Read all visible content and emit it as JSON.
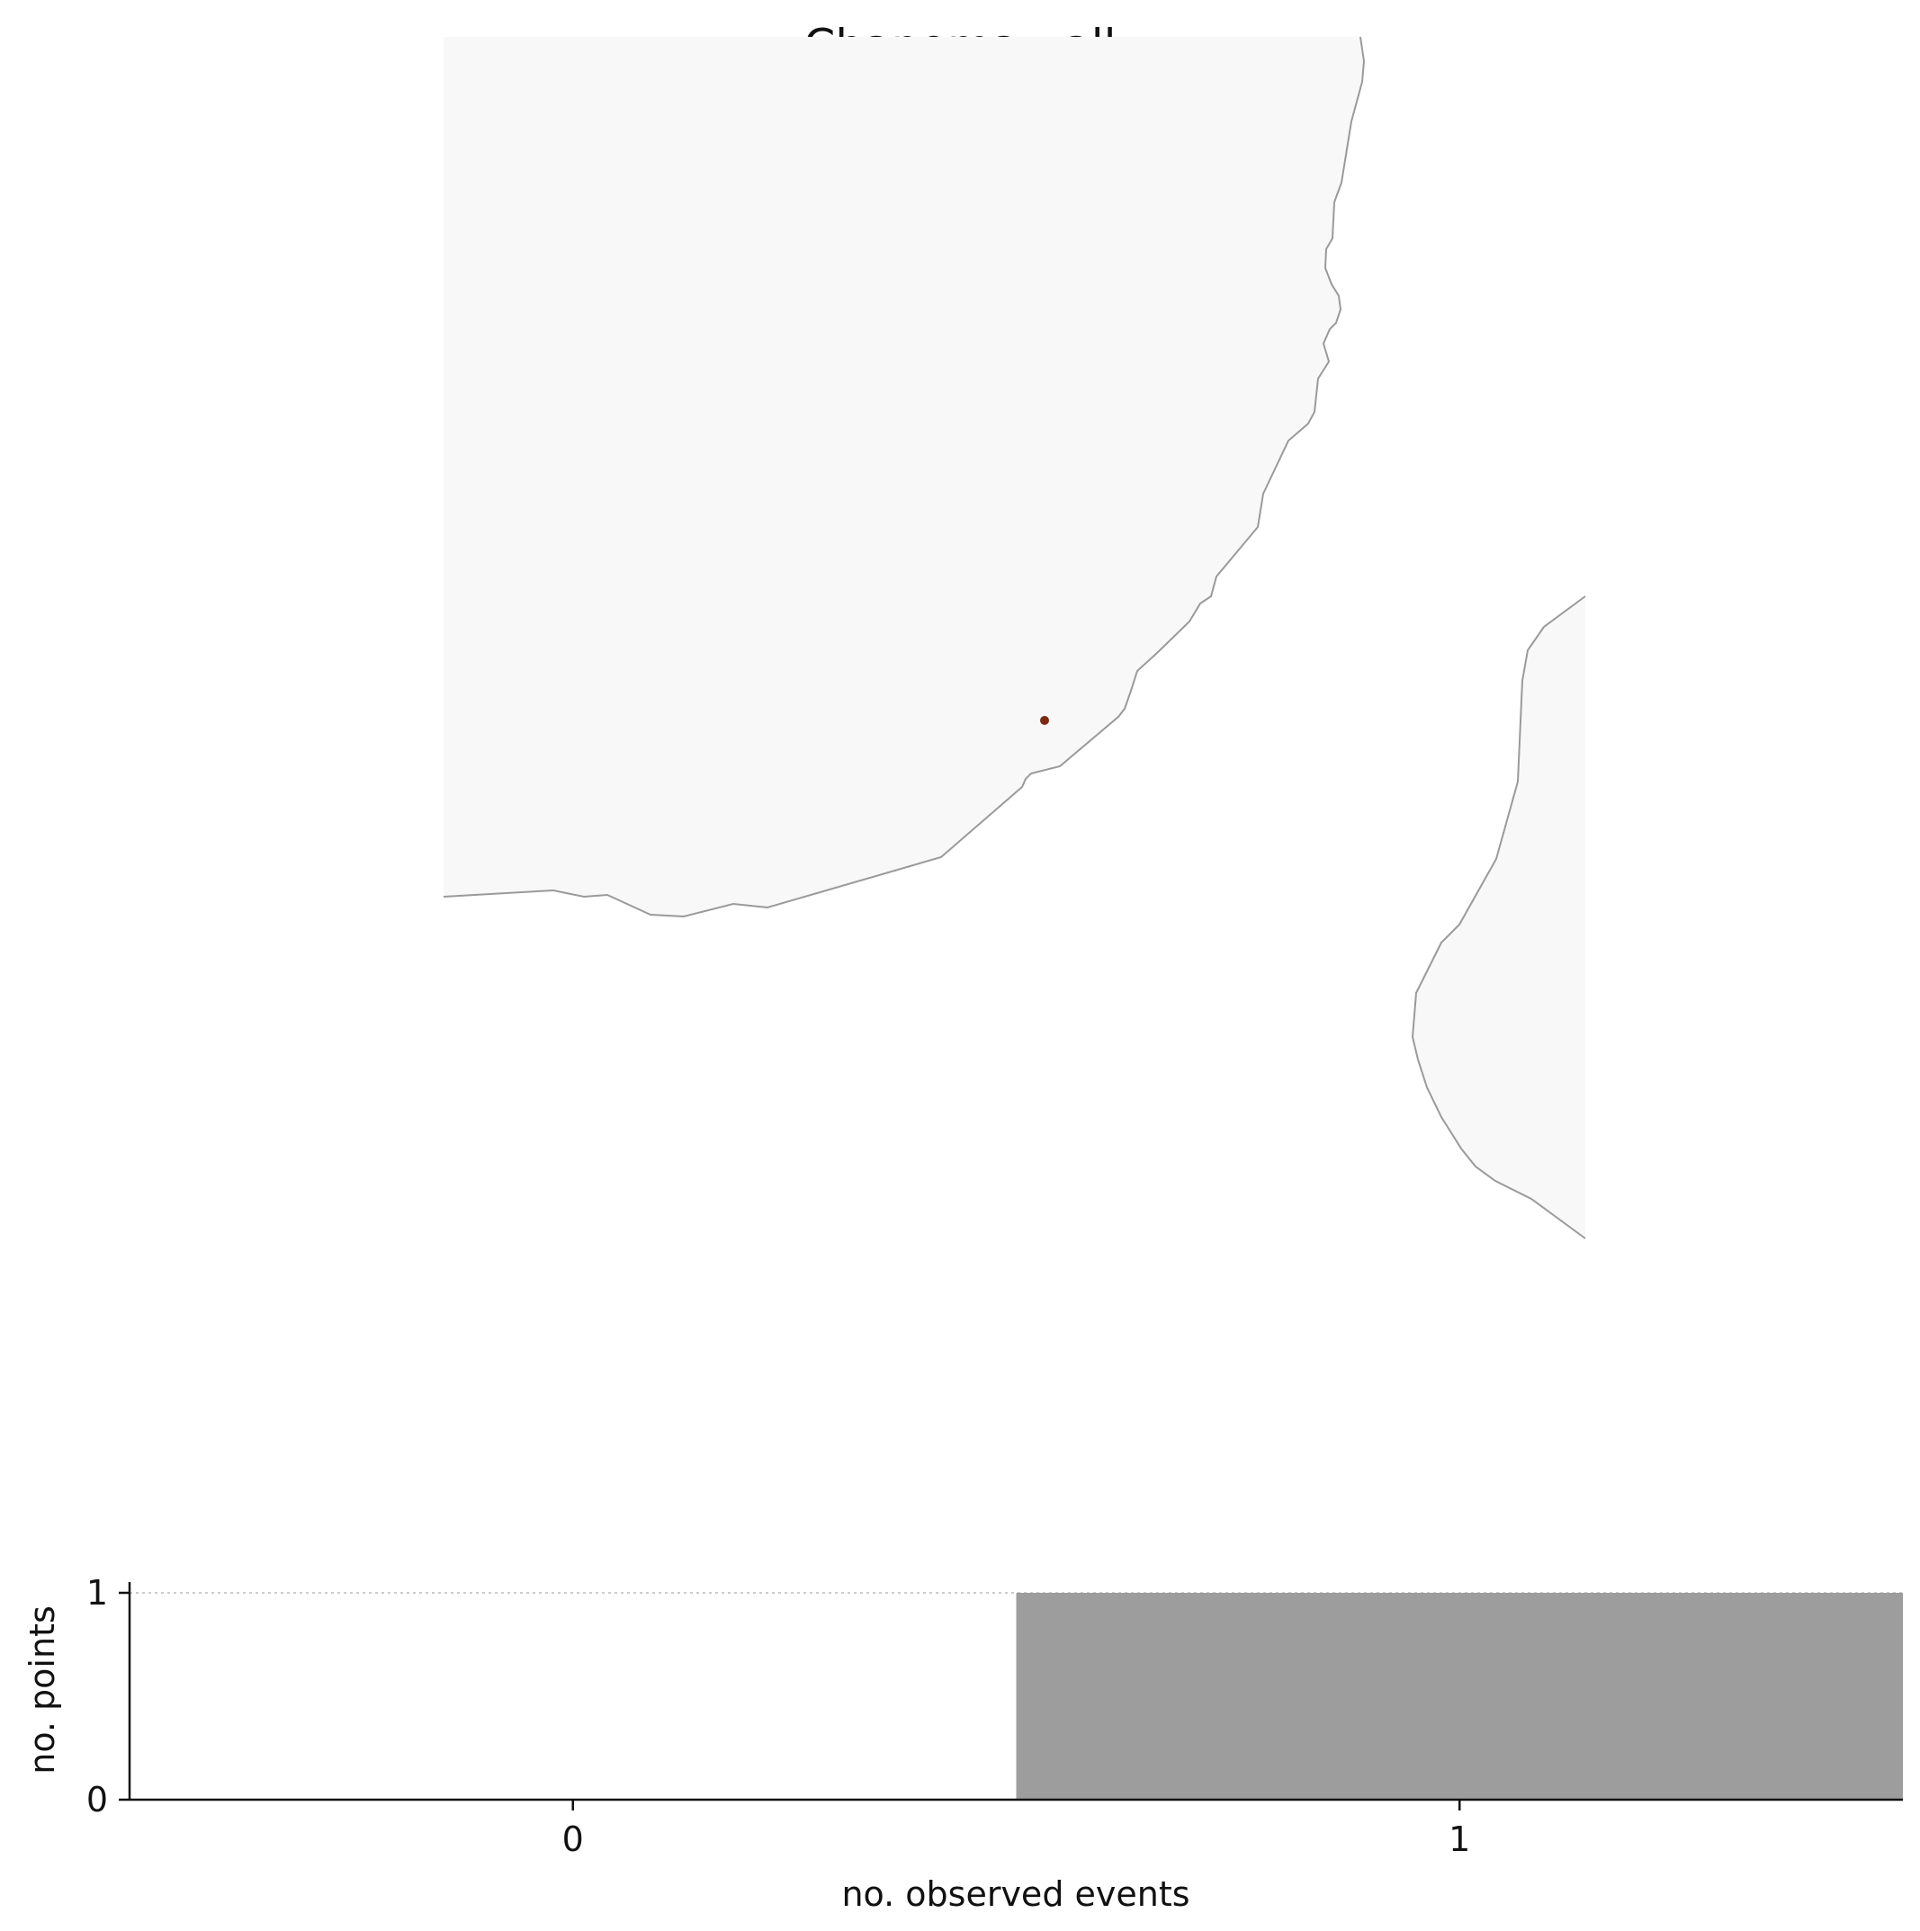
{
  "title": "Chapoma - all",
  "map": {
    "land_color": "#f8f8f8",
    "coast_color": "#9a9a9a",
    "points": [
      {
        "label": "observation",
        "color": "#7a2a10"
      }
    ]
  },
  "chart_data": {
    "type": "bar",
    "title": "Chapoma - all",
    "xlabel": "no. observed events",
    "ylabel": "no. points",
    "categories": [
      "0",
      "1"
    ],
    "x": [
      0,
      1
    ],
    "values": [
      0,
      1
    ],
    "xlim": [
      -0.5,
      1.5
    ],
    "ylim": [
      0,
      1
    ],
    "yticks": [
      0,
      1
    ],
    "xticks": [
      0,
      1
    ],
    "bar_color": "#9d9d9d",
    "reference_line": 1
  }
}
